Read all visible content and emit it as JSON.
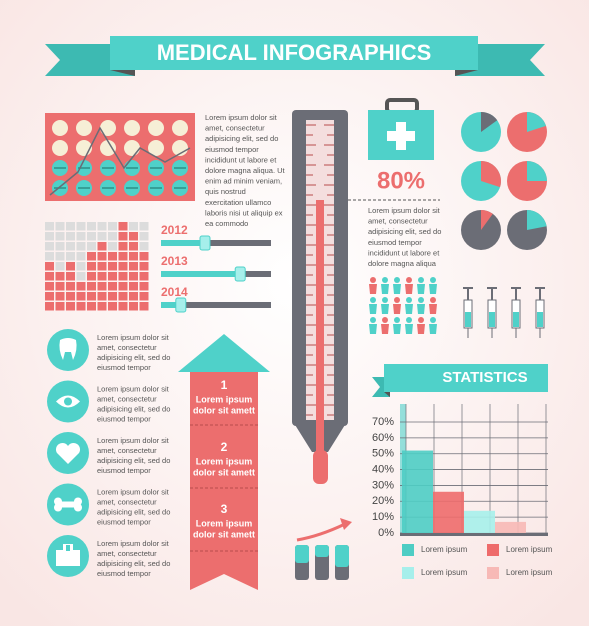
{
  "header": {
    "title": "MEDICAL INFOGRAPHICS"
  },
  "intro": {
    "lines": [
      "Lorem ipsum dolor sit",
      "amet, consectetur",
      "adipisicing elit, sed do",
      "eiusmod tempor",
      "incididunt ut labore et",
      "dolore magna aliqua. Ut",
      "enim ad minim veniam,",
      "quis nostrud",
      "exercitation ullamco",
      "laboris nisi ut aliquip ex",
      "ea commodo"
    ]
  },
  "years": [
    {
      "label": "2012",
      "slider": 40
    },
    {
      "label": "2013",
      "slider": 72
    },
    {
      "label": "2014",
      "slider": 18
    }
  ],
  "kit": {
    "percent": "80%",
    "lines": [
      "Lorem ipsum dolor sit",
      "amet, consectetur",
      "adipisicing elit, sed do",
      "eiusmod tempor",
      "incididunt ut labore et",
      "dolore magna aliqua"
    ]
  },
  "icons": [
    {
      "lines": [
        "Lorem ipsum dolor sit",
        "amet, consectetur",
        "adipisicing elit, sed do",
        "eiusmod tempor"
      ]
    },
    {
      "lines": [
        "Lorem ipsum dolor sit",
        "amet, consectetur",
        "adipisicing elit, sed do",
        "eiusmod tempor"
      ]
    },
    {
      "lines": [
        "Lorem ipsum dolor sit",
        "amet, consectetur",
        "adipisicing elit, sed do",
        "eiusmod tempor"
      ]
    },
    {
      "lines": [
        "Lorem ipsum dolor sit",
        "amet, consectetur",
        "adipisicing elit, sed do",
        "eiusmod tempor"
      ]
    },
    {
      "lines": [
        "Lorem ipsum dolor sit",
        "amet, consectetur",
        "adipisicing elit, sed do",
        "eiusmod tempor"
      ]
    }
  ],
  "steps": [
    {
      "number": "1",
      "lines": [
        "Lorem ipsum",
        "dolor sit amett"
      ]
    },
    {
      "number": "2",
      "lines": [
        "Lorem ipsum",
        "dolor sit amett"
      ]
    },
    {
      "number": "3",
      "lines": [
        "Lorem ipsum",
        "dolor sit amett"
      ]
    }
  ],
  "chart_data": {
    "type": "bar",
    "title": "STATISTICS",
    "categories": [
      null
    ],
    "series": [
      {
        "name": "Lorem ipsum",
        "color": "#4ecdc4",
        "values": [
          52
        ]
      },
      {
        "name": "Lorem ipsum",
        "color": "#ee6b6b",
        "values": [
          26
        ]
      },
      {
        "name": "Lorem ipsum",
        "color": "#a6efeb",
        "values": [
          14
        ]
      },
      {
        "name": "Lorem ipsum",
        "color": "#f7b9b6",
        "values": [
          7
        ]
      }
    ],
    "ylim": [
      0,
      70
    ],
    "yticks": [
      {
        "value": 0,
        "label": "0%"
      },
      {
        "value": 10,
        "label": "10%"
      },
      {
        "value": 20,
        "label": "20%"
      },
      {
        "value": 30,
        "label": "30%"
      },
      {
        "value": 40,
        "label": "40%"
      },
      {
        "value": 50,
        "label": "50%"
      },
      {
        "value": 60,
        "label": "60%"
      },
      {
        "value": 70,
        "label": "70%"
      }
    ],
    "grid": true
  }
}
